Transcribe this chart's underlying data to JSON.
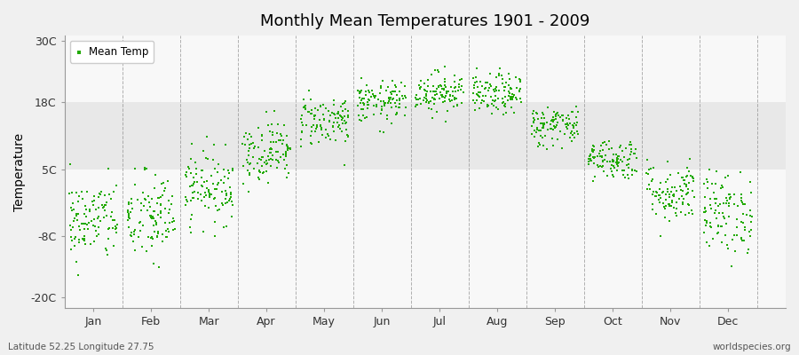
{
  "title": "Monthly Mean Temperatures 1901 - 2009",
  "ylabel": "Temperature",
  "xlabel_labels": [
    "Jan",
    "Feb",
    "Mar",
    "Apr",
    "May",
    "Jun",
    "Jul",
    "Aug",
    "Sep",
    "Oct",
    "Nov",
    "Dec"
  ],
  "ytick_labels": [
    "-20C",
    "-8C",
    "5C",
    "18C",
    "30C"
  ],
  "ytick_values": [
    -20,
    -8,
    5,
    18,
    30
  ],
  "ylim": [
    -22,
    31
  ],
  "xlim": [
    0.0,
    12.5
  ],
  "dot_color": "#22aa00",
  "dot_size": 4,
  "background_color": "#f0f0f0",
  "plot_bg_color": "#f8f8f8",
  "band_color": "#e8e8e8",
  "legend_label": "Mean Temp",
  "footnote_left": "Latitude 52.25 Longitude 27.75",
  "footnote_right": "worldspecies.org",
  "monthly_means": [
    -5.0,
    -4.5,
    1.5,
    8.5,
    14.5,
    18.0,
    20.0,
    19.5,
    13.5,
    7.0,
    0.5,
    -3.5
  ],
  "monthly_stds": [
    4.0,
    4.5,
    3.5,
    3.0,
    2.5,
    2.0,
    2.0,
    2.0,
    2.0,
    2.0,
    3.0,
    4.0
  ],
  "n_years": 109,
  "seed": 42,
  "vline_color": "#808080",
  "band_y_low": 5,
  "band_y_high": 18
}
